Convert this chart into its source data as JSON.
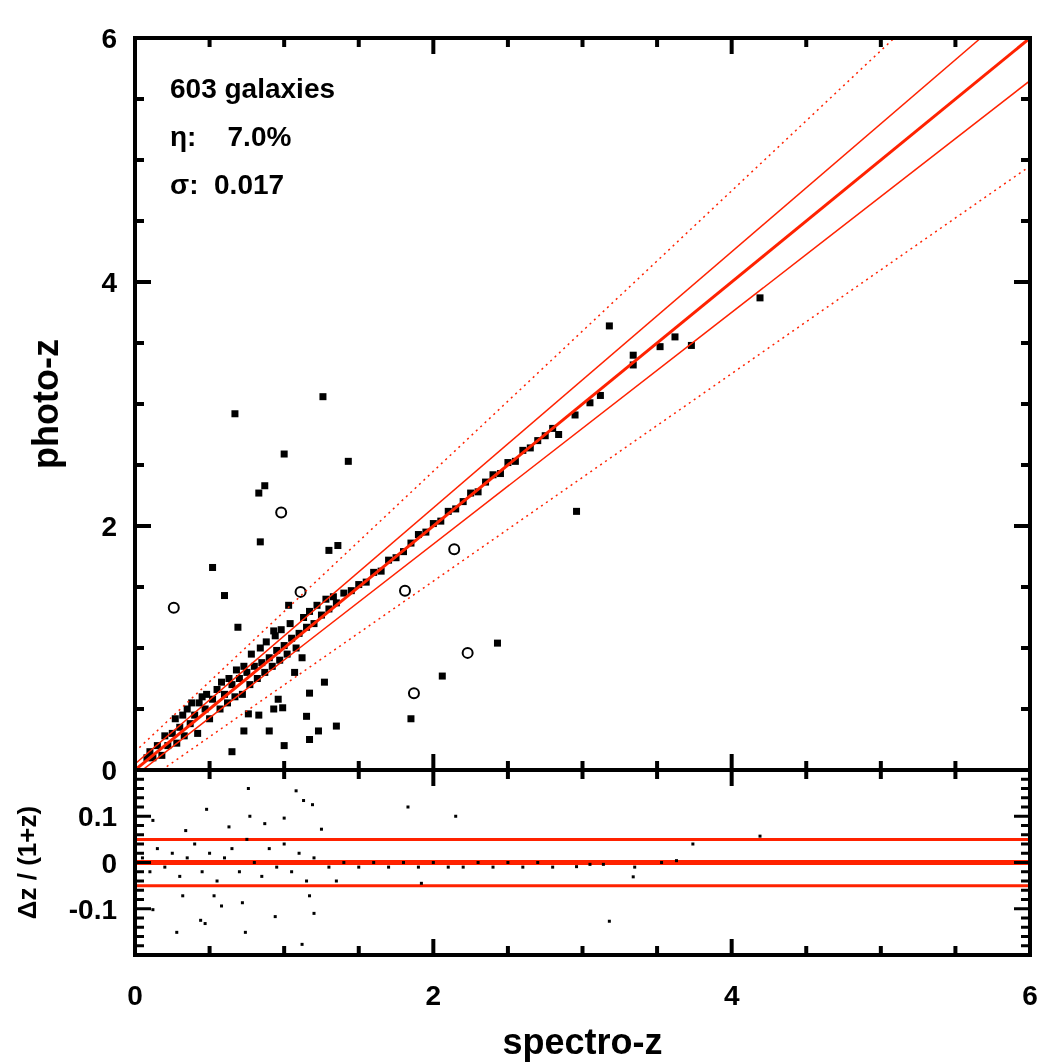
{
  "chart_data": [
    {
      "type": "scatter",
      "ylabel": "photo-z",
      "xlim": [
        0,
        6
      ],
      "ylim": [
        0,
        6
      ],
      "tick_labels": "y",
      "xticks": [
        0,
        {
          "value": 0.5,
          "label": null
        },
        {
          "value": 1,
          "label": null
        },
        {
          "value": 1.5,
          "label": null
        },
        2,
        {
          "value": 2.5,
          "label": null
        },
        {
          "value": 3,
          "label": null
        },
        {
          "value": 3.5,
          "label": null
        },
        4,
        {
          "value": 4.5,
          "label": null
        },
        {
          "value": 5,
          "label": null
        },
        {
          "value": 5.5,
          "label": null
        },
        6
      ],
      "yticks": [
        0,
        {
          "value": 0.5,
          "label": null
        },
        {
          "value": 1,
          "label": null
        },
        {
          "value": 1.5,
          "label": null
        },
        2,
        {
          "value": 2.5,
          "label": null
        },
        {
          "value": 3,
          "label": null
        },
        {
          "value": 3.5,
          "label": null
        },
        4,
        {
          "value": 4.5,
          "label": null
        },
        {
          "value": 5,
          "label": null
        },
        {
          "value": 5.5,
          "label": null
        },
        6
      ],
      "annotations": [
        "603 galaxies",
        "η:    7.0%",
        "σ:  0.017"
      ],
      "series": [
        {
          "marker": "square",
          "color": "#000000",
          "x": [
            1.26,
            0.67,
            1.0,
            1.43,
            0.83,
            0.87,
            0.84,
            1.3,
            1.36,
            0.52,
            0.6,
            1.03,
            0.69,
            0.93,
            2.43,
            2.06,
            1.85,
            1.27,
            1.17,
            1.15,
            1.35,
            1.23,
            1.17,
            1.0,
            0.9,
            0.73,
            0.65,
            0.83,
            0.76,
            0.93,
            0.99,
            0.96,
            2.96,
            3.18,
            4.19,
            3.34,
            3.34,
            3.52,
            3.62,
            3.73,
            2.95,
            3.05,
            3.12,
            2.84,
            0.08,
            0.1,
            0.12,
            0.15,
            0.18,
            0.2,
            0.22,
            0.25,
            0.27,
            0.28,
            0.3,
            0.32,
            0.33,
            0.35,
            0.37,
            0.38,
            0.4,
            0.42,
            0.43,
            0.45,
            0.47,
            0.48,
            0.5,
            0.52,
            0.55,
            0.57,
            0.58,
            0.6,
            0.62,
            0.63,
            0.65,
            0.67,
            0.68,
            0.7,
            0.72,
            0.73,
            0.75,
            0.77,
            0.78,
            0.8,
            0.82,
            0.84,
            0.85,
            0.87,
            0.88,
            0.9,
            0.92,
            0.94,
            0.95,
            0.97,
            0.98,
            1.0,
            1.02,
            1.04,
            1.05,
            1.07,
            1.08,
            1.1,
            1.12,
            1.13,
            1.15,
            1.17,
            1.2,
            1.22,
            1.25,
            1.28,
            1.3,
            1.33,
            1.35,
            1.4,
            1.45,
            1.5,
            1.55,
            1.6,
            1.65,
            1.7,
            1.75,
            1.8,
            1.85,
            1.9,
            1.95,
            2.0,
            2.05,
            2.1,
            2.15,
            2.2,
            2.25,
            2.3,
            2.35,
            2.4,
            2.45,
            2.5,
            2.55,
            2.6,
            2.65,
            2.7,
            2.75,
            2.8
          ],
          "values": [
            3.06,
            2.92,
            2.59,
            2.53,
            2.27,
            2.33,
            1.87,
            1.8,
            1.84,
            1.66,
            1.43,
            1.35,
            1.17,
            1.14,
            1.04,
            0.77,
            0.42,
            0.72,
            0.63,
            0.44,
            0.36,
            0.32,
            0.25,
            0.2,
            0.32,
            0.32,
            0.15,
            0.45,
            0.46,
            0.5,
            0.51,
            0.58,
            2.12,
            3.64,
            3.87,
            3.4,
            3.32,
            3.47,
            3.55,
            3.48,
            2.91,
            3.01,
            3.07,
            2.75,
            0.1,
            0.15,
            0.1,
            0.2,
            0.12,
            0.28,
            0.2,
            0.3,
            0.42,
            0.22,
            0.35,
            0.45,
            0.28,
            0.5,
            0.38,
            0.55,
            0.45,
            0.3,
            0.55,
            0.6,
            0.5,
            0.62,
            0.42,
            0.58,
            0.66,
            0.5,
            0.72,
            0.62,
            0.55,
            0.75,
            0.7,
            0.6,
            0.82,
            0.75,
            0.62,
            0.85,
            0.8,
            0.7,
            0.95,
            0.85,
            0.75,
            1.0,
            0.88,
            0.8,
            1.05,
            0.92,
            0.85,
            1.1,
            0.98,
            0.9,
            1.15,
            1.02,
            0.95,
            1.2,
            1.08,
            0.8,
            1.0,
            1.12,
            0.92,
            1.25,
            1.17,
            1.3,
            1.2,
            1.35,
            1.27,
            1.4,
            1.32,
            1.42,
            1.37,
            1.45,
            1.47,
            1.52,
            1.54,
            1.62,
            1.63,
            1.72,
            1.74,
            1.79,
            1.86,
            1.93,
            1.95,
            2.02,
            2.04,
            2.12,
            2.14,
            2.2,
            2.27,
            2.28,
            2.36,
            2.42,
            2.43,
            2.52,
            2.53,
            2.62,
            2.64,
            2.7,
            2.74,
            2.8
          ]
        },
        {
          "marker": "circle",
          "color": "#000000",
          "x": [
            0.98,
            0.26,
            1.11,
            1.81,
            2.14,
            2.23,
            1.87
          ],
          "values": [
            2.11,
            1.33,
            1.46,
            1.47,
            1.81,
            0.96,
            0.63
          ]
        },
        {
          "type": "line",
          "line_style": "solid",
          "color": "#ff2200",
          "x": [
            0,
            6
          ],
          "values": [
            0,
            6
          ]
        },
        {
          "type": "line",
          "line_style": "solid",
          "color": "#ff2200",
          "x": [
            0,
            5.67
          ],
          "values": [
            0.05,
            6.0
          ]
        },
        {
          "type": "line",
          "line_style": "solid",
          "color": "#ff2200",
          "x": [
            0.05,
            6
          ],
          "values": [
            0,
            5.65
          ]
        },
        {
          "type": "line",
          "line_style": "dotted",
          "color": "#ff2200",
          "x": [
            0,
            5.09
          ],
          "values": [
            0.15,
            6.0
          ]
        },
        {
          "type": "line",
          "line_style": "dotted",
          "color": "#ff2200",
          "x": [
            0.18,
            6
          ],
          "values": [
            0,
            4.95
          ]
        }
      ]
    },
    {
      "type": "scatter",
      "xlabel": "spectro-z",
      "ylabel": "Δz / (1+z)",
      "xlim": [
        0,
        6
      ],
      "ylim": [
        -0.2,
        0.2
      ],
      "xticks": [
        0,
        {
          "value": 0.5,
          "label": null
        },
        {
          "value": 1,
          "label": null
        },
        {
          "value": 1.5,
          "label": null
        },
        2,
        {
          "value": 2.5,
          "label": null
        },
        {
          "value": 3,
          "label": null
        },
        {
          "value": 3.5,
          "label": null
        },
        4,
        {
          "value": 4.5,
          "label": null
        },
        {
          "value": 5,
          "label": null
        },
        {
          "value": 5.5,
          "label": null
        },
        6
      ],
      "yticks": [
        {
          "value": -0.18,
          "label": null
        },
        {
          "value": -0.16,
          "label": null
        },
        {
          "value": -0.14,
          "label": null
        },
        {
          "value": -0.12,
          "label": null
        },
        -0.1,
        {
          "value": -0.08,
          "label": null
        },
        {
          "value": -0.06,
          "label": null
        },
        {
          "value": -0.04,
          "label": null
        },
        {
          "value": -0.02,
          "label": null
        },
        0,
        {
          "value": 0.02,
          "label": null
        },
        {
          "value": 0.04,
          "label": null
        },
        {
          "value": 0.06,
          "label": null
        },
        {
          "value": 0.08,
          "label": null
        },
        0.1,
        {
          "value": 0.12,
          "label": null
        },
        {
          "value": 0.14,
          "label": null
        },
        {
          "value": 0.16,
          "label": null
        },
        {
          "value": 0.18,
          "label": null
        }
      ],
      "ref_lines": [
        {
          "axis": "y",
          "value": 0.05,
          "color": "#ff2200"
        },
        {
          "axis": "y",
          "value": 0,
          "color": "#ff2200"
        },
        {
          "axis": "y",
          "value": -0.05,
          "color": "#ff2200"
        }
      ],
      "series": [
        {
          "marker": "square",
          "color": "#000000",
          "x": [
            0.76,
            1.08,
            1.83,
            2.15,
            0.48,
            1.13,
            1.19,
            0.77,
            1.0,
            0.87,
            0.63,
            0.34,
            1.25,
            0.12,
            0.28,
            0.74,
            0.94,
            1.2,
            1.17,
            0.44,
            0.47,
            0.58,
            0.72,
            0.32,
            0.12,
            0.53,
            1.92,
            1.35,
            1.12,
            4.19,
            3.74,
            3.18,
            3.34,
            3.35,
            3.53,
            3.63,
            3.14,
            3.05,
            2.96,
            0.05,
            0.1,
            0.15,
            0.2,
            0.25,
            0.3,
            0.35,
            0.4,
            0.45,
            0.5,
            0.55,
            0.6,
            0.65,
            0.7,
            0.75,
            0.8,
            0.85,
            0.9,
            0.95,
            1.0,
            1.05,
            1.1,
            1.15,
            1.2,
            1.3,
            1.4,
            1.5,
            1.6,
            1.7,
            1.8,
            1.9,
            2.0,
            2.1,
            2.2,
            2.3,
            2.4,
            2.5,
            2.6,
            2.7,
            2.8
          ],
          "values": [
            0.16,
            0.155,
            0.12,
            0.1,
            0.115,
            0.134,
            0.125,
            0.1,
            0.096,
            0.084,
            0.077,
            0.069,
            0.072,
            0.091,
            -0.151,
            -0.151,
            -0.117,
            -0.11,
            -0.072,
            -0.125,
            -0.132,
            -0.094,
            -0.087,
            -0.072,
            -0.102,
            -0.072,
            -0.045,
            -0.04,
            -0.177,
            0.057,
            0.04,
            -0.127,
            -0.031,
            -0.01,
            0.0,
            0.004,
            -0.004,
            -0.004,
            -0.009,
            0.01,
            -0.02,
            0.03,
            -0.01,
            0.02,
            -0.03,
            0.01,
            0.04,
            -0.02,
            0.02,
            -0.04,
            0.01,
            0.03,
            -0.02,
            0.05,
            0.0,
            -0.03,
            0.03,
            -0.01,
            0.04,
            -0.02,
            0.02,
            -0.04,
            0.01,
            -0.01,
            0.0,
            -0.01,
            0.0,
            -0.01,
            0.0,
            -0.01,
            0.0,
            -0.01,
            -0.01,
            0.0,
            -0.01,
            0.0,
            -0.01,
            0.0,
            -0.01
          ]
        }
      ]
    }
  ]
}
